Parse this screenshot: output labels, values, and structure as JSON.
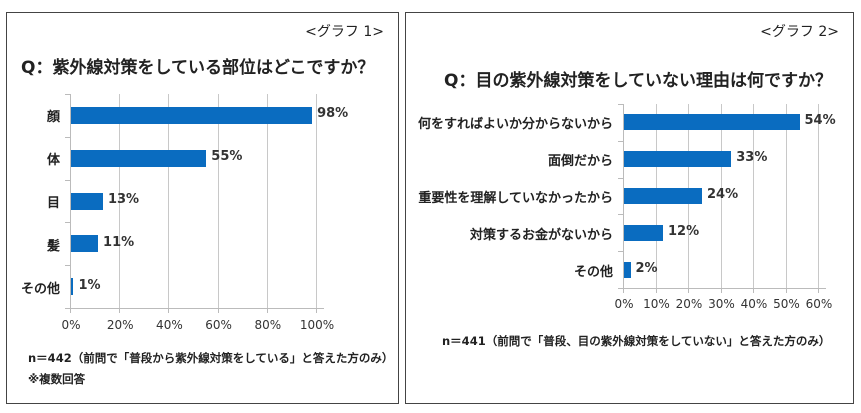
{
  "chart_data": [
    {
      "type": "bar",
      "orientation": "horizontal",
      "graph_label": "<グラフ 1>",
      "title": "Q：紫外線対策をしている部位はどこですか？",
      "categories": [
        "顔",
        "体",
        "目",
        "髪",
        "その他"
      ],
      "values": [
        98,
        55,
        13,
        11,
        1
      ],
      "value_labels": [
        "98%",
        "55%",
        "13%",
        "11%",
        "1%"
      ],
      "xlabel": "",
      "ylabel": "",
      "xlim": [
        0,
        100
      ],
      "xticks": [
        "0%",
        "20%",
        "40%",
        "60%",
        "80%",
        "100%"
      ],
      "grid": true,
      "bar_color": "#0a6cc0",
      "note": "n＝442（前問で「普段から紫外線対策をしている」と答えた方のみ）",
      "note2": "※複数回答"
    },
    {
      "type": "bar",
      "orientation": "horizontal",
      "graph_label": "<グラフ 2>",
      "title": "Q：目の紫外線対策をしていない理由は何ですか？",
      "categories": [
        "何をすればよいか分からないから",
        "面倒だから",
        "重要性を理解していなかったから",
        "対策するお金がないから",
        "その他"
      ],
      "values": [
        54,
        33,
        24,
        12,
        2
      ],
      "value_labels": [
        "54%",
        "33%",
        "24%",
        "12%",
        "2%"
      ],
      "xlabel": "",
      "ylabel": "",
      "xlim": [
        0,
        60
      ],
      "xticks": [
        "0%",
        "10%",
        "20%",
        "30%",
        "40%",
        "50%",
        "60%"
      ],
      "grid": true,
      "bar_color": "#0a6cc0",
      "note": "n＝441（前問で「普段、目の紫外線対策をしていない」と答えた方のみ）"
    }
  ]
}
